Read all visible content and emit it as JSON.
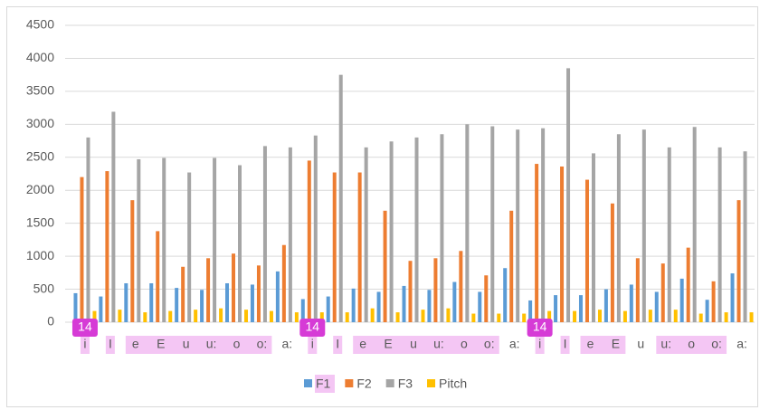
{
  "chart_data": {
    "type": "bar",
    "categories": [
      "i",
      "I",
      "e",
      "E",
      "u",
      "u:",
      "o",
      "o:",
      "a:",
      "i",
      "I",
      "e",
      "E",
      "u",
      "u:",
      "o",
      "o:",
      "a:",
      "i",
      "I",
      "e",
      "E",
      "u",
      "u:",
      "o",
      "o:",
      "a:"
    ],
    "series": [
      {
        "name": "F1",
        "color": "#5b9bd5",
        "values": [
          440,
          390,
          590,
          590,
          520,
          490,
          590,
          570,
          770,
          350,
          390,
          510,
          460,
          550,
          490,
          610,
          460,
          820,
          330,
          410,
          410,
          500,
          570,
          460,
          660,
          340,
          740
        ]
      },
      {
        "name": "F2",
        "color": "#ed7d31",
        "values": [
          2200,
          2290,
          1850,
          1380,
          840,
          970,
          1040,
          860,
          1170,
          2450,
          2270,
          2270,
          1690,
          930,
          970,
          1080,
          710,
          1690,
          2400,
          2360,
          2160,
          1800,
          970,
          890,
          1130,
          620,
          1850
        ]
      },
      {
        "name": "F3",
        "color": "#a5a5a5",
        "values": [
          2800,
          3190,
          2470,
          2490,
          2270,
          2490,
          2380,
          2670,
          2650,
          2830,
          3750,
          2650,
          2740,
          2800,
          2850,
          3000,
          2970,
          2920,
          2940,
          3850,
          2560,
          2850,
          2920,
          2650,
          2960,
          2650,
          2590
        ]
      },
      {
        "name": "Pitch",
        "color": "#ffc000",
        "values": [
          170,
          190,
          150,
          170,
          190,
          210,
          190,
          170,
          150,
          150,
          150,
          210,
          150,
          190,
          210,
          130,
          130,
          130,
          170,
          170,
          190,
          170,
          190,
          190,
          130,
          150,
          150
        ]
      }
    ],
    "ylim": [
      0,
      4500
    ],
    "yticks": [
      0,
      500,
      1000,
      1500,
      2000,
      2500,
      3000,
      3500,
      4000,
      4500
    ],
    "grid": true,
    "legend": "bottom",
    "highlight_color": "#f4c6f4",
    "highlights": [
      [
        0,
        0
      ],
      [
        1,
        1
      ],
      [
        2,
        7
      ],
      [
        9,
        9
      ],
      [
        10,
        10
      ],
      [
        11,
        16
      ],
      [
        18,
        18
      ],
      [
        19,
        19
      ],
      [
        20,
        21
      ],
      [
        23,
        25
      ]
    ],
    "highlight_legend": [
      0
    ],
    "annotations": [
      {
        "text": "14",
        "category": 0
      },
      {
        "text": "14",
        "category": 9
      },
      {
        "text": "14",
        "category": 18
      }
    ],
    "annotation_color": "#d63bd6"
  }
}
